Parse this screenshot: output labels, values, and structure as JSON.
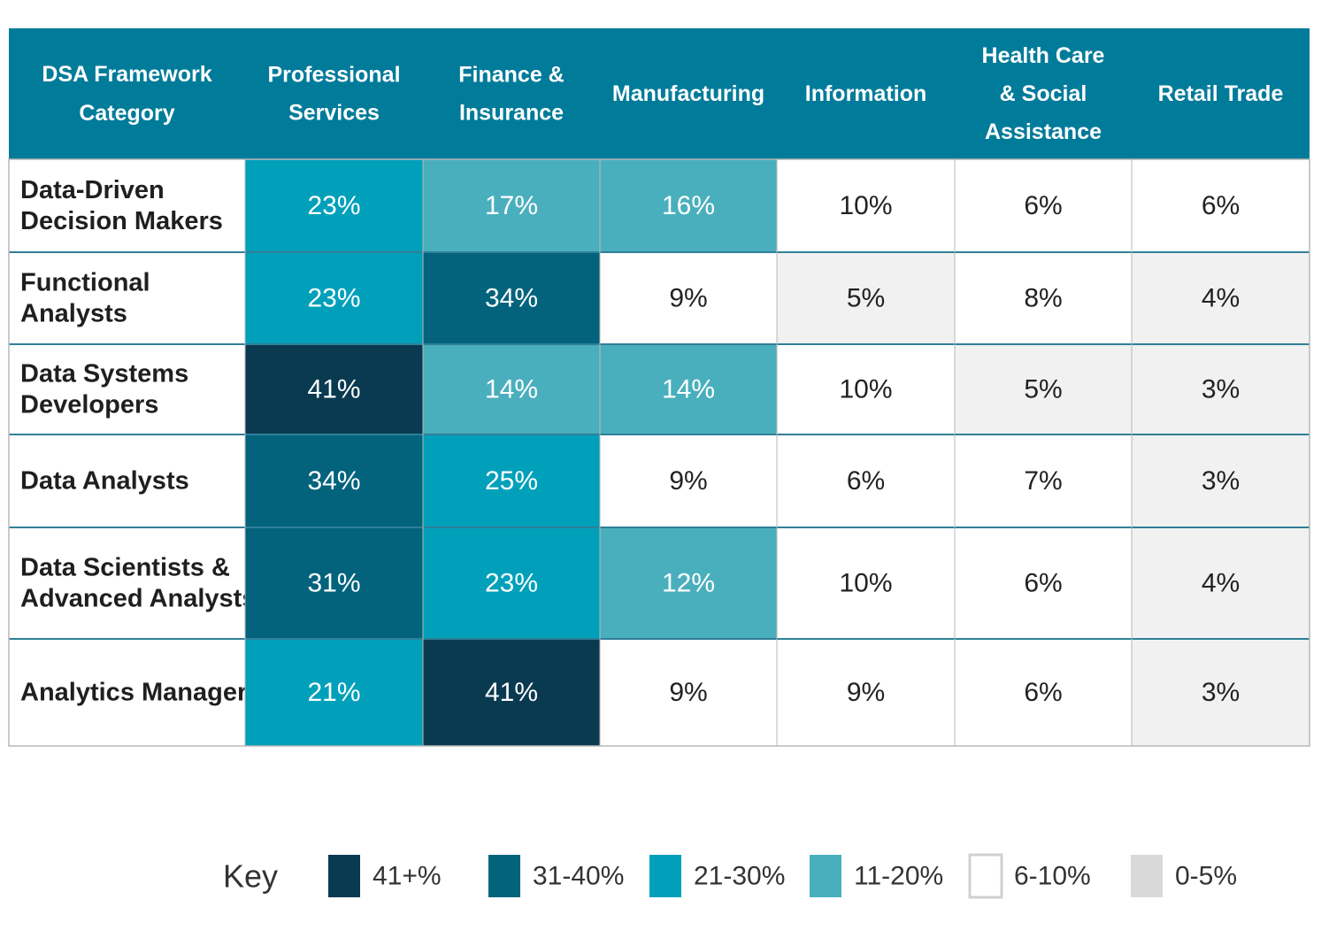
{
  "chart_data": {
    "type": "heatmap",
    "corner_header": [
      "DSA Framework",
      "Category"
    ],
    "columns": [
      {
        "name": "Professional Services",
        "header_lines": [
          "Professional",
          "Services"
        ]
      },
      {
        "name": "Finance & Insurance",
        "header_lines": [
          "Finance &",
          "Insurance"
        ]
      },
      {
        "name": "Manufacturing",
        "header_lines": [
          "Manufacturing"
        ]
      },
      {
        "name": "Information",
        "header_lines": [
          "Information"
        ]
      },
      {
        "name": "Health Care & Social Assistance",
        "header_lines": [
          "Health Care",
          "& Social",
          "Assistance"
        ]
      },
      {
        "name": "Retail Trade",
        "header_lines": [
          "Retail Trade"
        ]
      }
    ],
    "rows": [
      {
        "name": "Data-Driven Decision Makers",
        "label_lines": [
          "Data-Driven",
          "Decision Makers"
        ],
        "values": [
          23,
          17,
          16,
          10,
          6,
          6
        ]
      },
      {
        "name": "Functional Analysts",
        "label_lines": [
          "Functional",
          "Analysts"
        ],
        "values": [
          23,
          34,
          9,
          5,
          8,
          4
        ]
      },
      {
        "name": "Data Systems Developers",
        "label_lines": [
          "Data Systems",
          "Developers"
        ],
        "values": [
          41,
          14,
          14,
          10,
          5,
          3
        ]
      },
      {
        "name": "Data Analysts",
        "label_lines": [
          "Data Analysts"
        ],
        "values": [
          34,
          25,
          9,
          6,
          7,
          3
        ]
      },
      {
        "name": "Data Scientists & Advanced Analysts",
        "label_lines": [
          "Data Scientists &",
          "Advanced Analysts"
        ],
        "values": [
          31,
          23,
          12,
          10,
          6,
          4
        ]
      },
      {
        "name": "Analytics Managers",
        "label_lines": [
          "Analytics Managers"
        ],
        "values": [
          21,
          41,
          9,
          9,
          6,
          3
        ]
      }
    ],
    "value_suffix": "%",
    "key": {
      "title": "Key",
      "bins": [
        {
          "label": "41+%",
          "min": 41,
          "max": 100,
          "color": "#0a3a50",
          "text_color": "#ffffff"
        },
        {
          "label": "31-40%",
          "min": 31,
          "max": 40,
          "color": "#03637d",
          "text_color": "#ffffff"
        },
        {
          "label": "21-30%",
          "min": 21,
          "max": 30,
          "color": "#00a0bb",
          "text_color": "#ffffff"
        },
        {
          "label": "11-20%",
          "min": 11,
          "max": 20,
          "color": "#4aafbd",
          "text_color": "#ffffff"
        },
        {
          "label": "6-10%",
          "min": 6,
          "max": 10,
          "color": "#ffffff",
          "text_color": "#222222"
        },
        {
          "label": "0-5%",
          "min": 0,
          "max": 5,
          "color": "#d9d9d9",
          "text_color": "#222222"
        }
      ]
    },
    "colors": {
      "header_bg": "#007b9a",
      "grid_line": "#2f7f98",
      "low_cell_bg": "#f1f1f1",
      "border": "#b8b8b8"
    }
  }
}
